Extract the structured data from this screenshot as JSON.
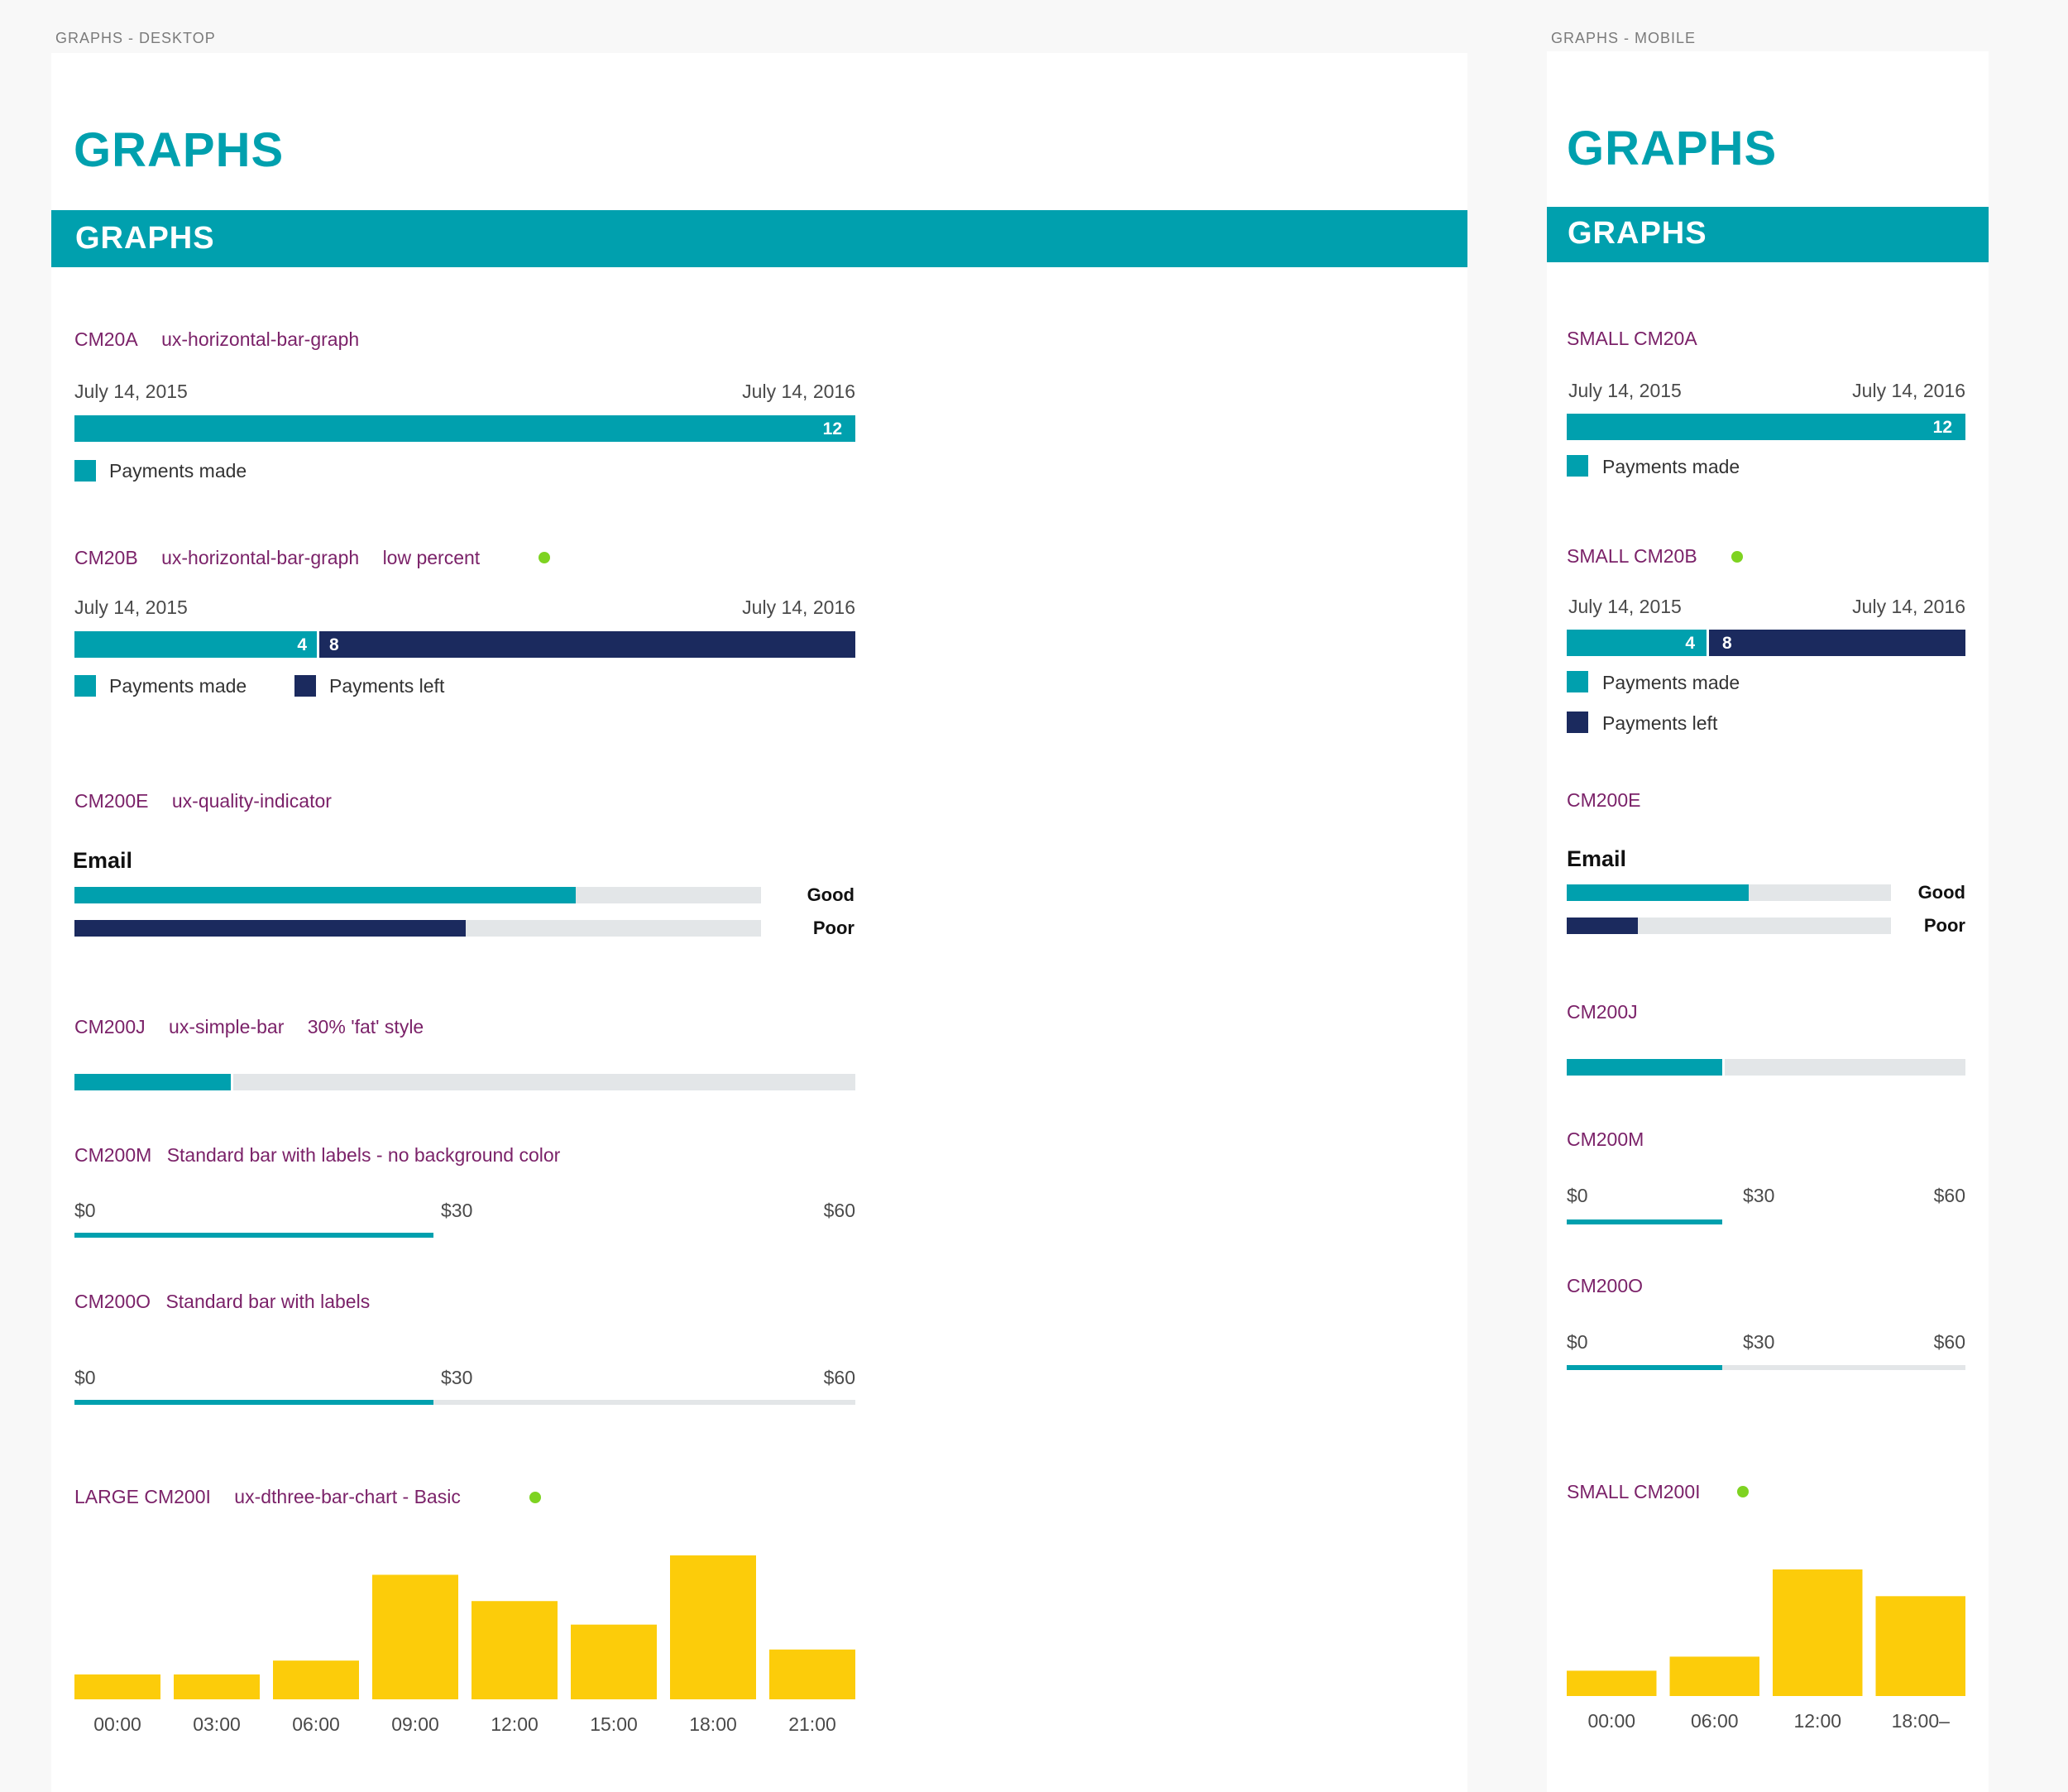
{
  "colors": {
    "teal": "#00a0ae",
    "navy": "#1b2a5e",
    "track": "#e3e6e8",
    "yellow": "#fccc0a",
    "purple": "#7b2269",
    "green_dot": "#7ed321"
  },
  "desktop": {
    "artboard_label": "GRAPHS - DESKTOP",
    "page_title": "GRAPHS",
    "section_title": "GRAPHS",
    "cm20a": {
      "code": "CM20A",
      "component": "ux-horizontal-bar-graph",
      "start_date": "July 14, 2015",
      "end_date": "July 14, 2016",
      "made_value": "12",
      "made_fraction": 1,
      "legend_made": "Payments made"
    },
    "cm20b": {
      "code": "CM20B",
      "component": "ux-horizontal-bar-graph",
      "note": "low percent",
      "start_date": "July 14, 2015",
      "end_date": "July 14, 2016",
      "made_value": "4",
      "left_value": "8",
      "made_fraction": 0.31,
      "legend_made": "Payments made",
      "legend_left": "Payments left"
    },
    "cm200e": {
      "code": "CM200E",
      "component": "ux-quality-indicator",
      "heading": "Email",
      "good_label": "Good",
      "good_fraction": 0.73,
      "poor_label": "Poor",
      "poor_fraction": 0.57
    },
    "cm200j": {
      "code": "CM200J",
      "component": "ux-simple-bar",
      "note": "30% 'fat' style",
      "fraction": 0.2
    },
    "cm200m": {
      "code": "CM200M",
      "description": "Standard bar with labels - no background color",
      "min_label": "$0",
      "mid_label": "$30",
      "max_label": "$60",
      "fraction": 0.46
    },
    "cm200o": {
      "code": "CM200O",
      "description": "Standard bar with labels",
      "min_label": "$0",
      "mid_label": "$30",
      "max_label": "$60",
      "fraction": 0.46
    },
    "cm200i": {
      "code": "LARGE CM200I",
      "component": "ux-dthree-bar-chart - Basic"
    }
  },
  "mobile": {
    "artboard_label": "GRAPHS - MOBILE",
    "page_title": "GRAPHS",
    "section_title": "GRAPHS",
    "cm20a": {
      "code": "SMALL CM20A",
      "start_date": "July 14, 2015",
      "end_date": "July 14, 2016",
      "made_value": "12",
      "made_fraction": 1,
      "legend_made": "Payments made"
    },
    "cm20b": {
      "code": "SMALL CM20B",
      "start_date": "July 14, 2015",
      "end_date": "July 14, 2016",
      "made_value": "4",
      "left_value": "8",
      "made_fraction": 0.35,
      "legend_made": "Payments made",
      "legend_left": "Payments left"
    },
    "cm200e": {
      "code": "CM200E",
      "heading": "Email",
      "good_label": "Good",
      "good_fraction": 0.56,
      "poor_label": "Poor",
      "poor_fraction": 0.22
    },
    "cm200j": {
      "code": "CM200J",
      "fraction": 0.39
    },
    "cm200m": {
      "code": "CM200M",
      "min_label": "$0",
      "mid_label": "$30",
      "max_label": "$60",
      "fraction": 0.39
    },
    "cm200o": {
      "code": "CM200O",
      "min_label": "$0",
      "mid_label": "$30",
      "max_label": "$60",
      "fraction": 0.39
    },
    "cm200i": {
      "code": "SMALL CM200I"
    }
  },
  "chart_data": [
    {
      "id": "desktop-bar-chart",
      "type": "bar",
      "title": "LARGE CM200I ux-dthree-bar-chart - Basic",
      "categories": [
        "00:00",
        "03:00",
        "06:00",
        "09:00",
        "12:00",
        "15:00",
        "18:00",
        "21:00"
      ],
      "values": [
        18,
        18,
        28,
        90,
        71,
        54,
        104,
        36
      ],
      "ylim": [
        0,
        110
      ],
      "xlabel": "",
      "ylabel": "",
      "grid": false,
      "legend": "none"
    },
    {
      "id": "mobile-bar-chart",
      "type": "bar",
      "title": "SMALL CM200I",
      "categories": [
        "00:00",
        "06:00",
        "12:00",
        "18:00–"
      ],
      "values": [
        18,
        28,
        90,
        71
      ],
      "ylim": [
        0,
        100
      ],
      "xlabel": "",
      "ylabel": "",
      "grid": false,
      "legend": "none"
    }
  ]
}
